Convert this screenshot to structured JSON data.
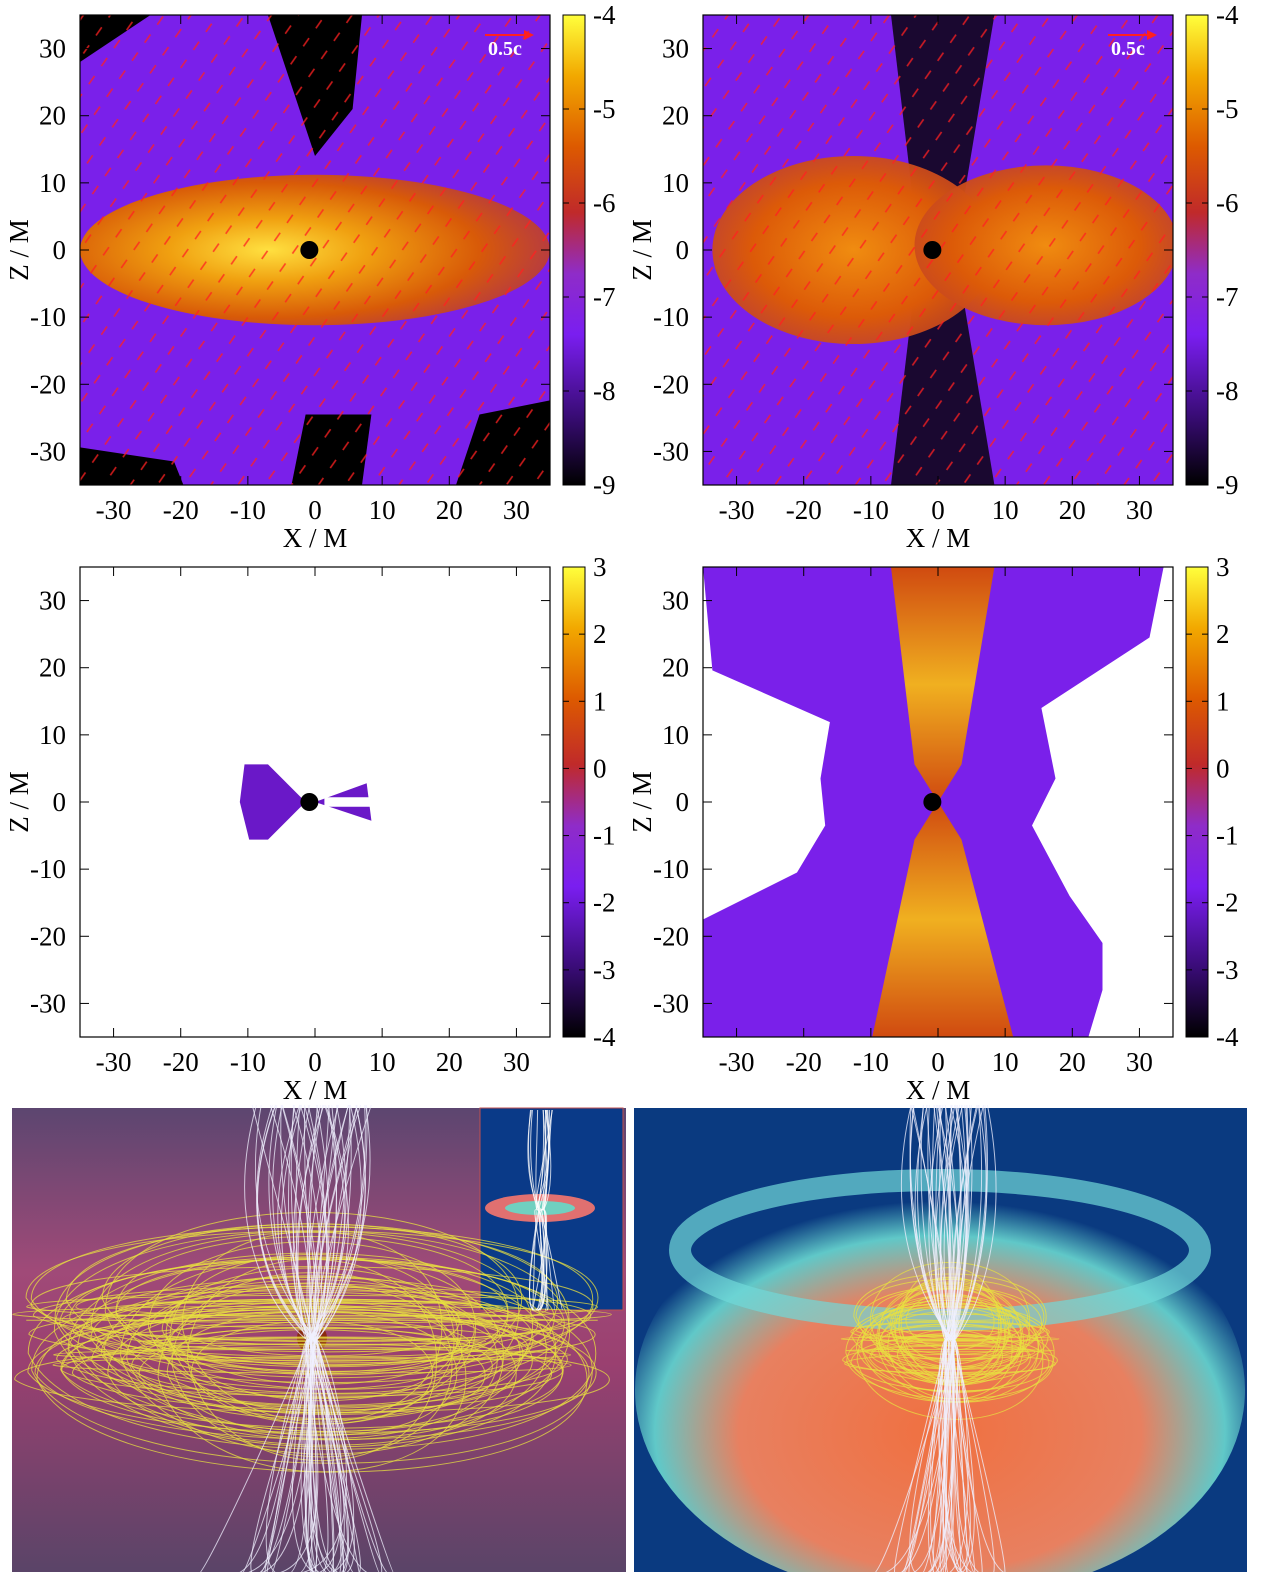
{
  "chart_data": [
    {
      "type": "heatmap",
      "xlabel": "X / M",
      "ylabel": "Z / M",
      "xlim": [
        -35,
        35
      ],
      "ylim": [
        -35,
        35
      ],
      "xticks": [
        -30,
        -20,
        -10,
        0,
        10,
        20,
        30
      ],
      "yticks": [
        -30,
        -20,
        -10,
        0,
        10,
        20,
        30
      ],
      "clim": [
        -9,
        -4
      ],
      "cticks": [
        -9,
        -8,
        -7,
        -6,
        -5,
        -4
      ],
      "annotation": "0.5c"
    },
    {
      "type": "heatmap",
      "xlabel": "X / M",
      "ylabel": "Z / M",
      "xlim": [
        -35,
        35
      ],
      "ylim": [
        -35,
        35
      ],
      "xticks": [
        -30,
        -20,
        -10,
        0,
        10,
        20,
        30
      ],
      "yticks": [
        -30,
        -20,
        -10,
        0,
        10,
        20,
        30
      ],
      "clim": [
        -9,
        -4
      ],
      "cticks": [
        -9,
        -8,
        -7,
        -6,
        -5,
        -4
      ],
      "annotation": "0.5c"
    },
    {
      "type": "heatmap",
      "xlabel": "X / M",
      "ylabel": "Z / M",
      "xlim": [
        -35,
        35
      ],
      "ylim": [
        -35,
        35
      ],
      "xticks": [
        -30,
        -20,
        -10,
        0,
        10,
        20,
        30
      ],
      "yticks": [
        -30,
        -20,
        -10,
        0,
        10,
        20,
        30
      ],
      "clim": [
        -4,
        3
      ],
      "cticks": [
        -4,
        -3,
        -2,
        -1,
        0,
        1,
        2,
        3
      ]
    },
    {
      "type": "heatmap",
      "xlabel": "X / M",
      "ylabel": "Z / M",
      "xlim": [
        -35,
        35
      ],
      "ylim": [
        -35,
        35
      ],
      "xticks": [
        -30,
        -20,
        -10,
        0,
        10,
        20,
        30
      ],
      "yticks": [
        -30,
        -20,
        -10,
        0,
        10,
        20,
        30
      ],
      "clim": [
        -4,
        3
      ],
      "cticks": [
        -4,
        -3,
        -2,
        -1,
        0,
        1,
        2,
        3
      ]
    }
  ]
}
